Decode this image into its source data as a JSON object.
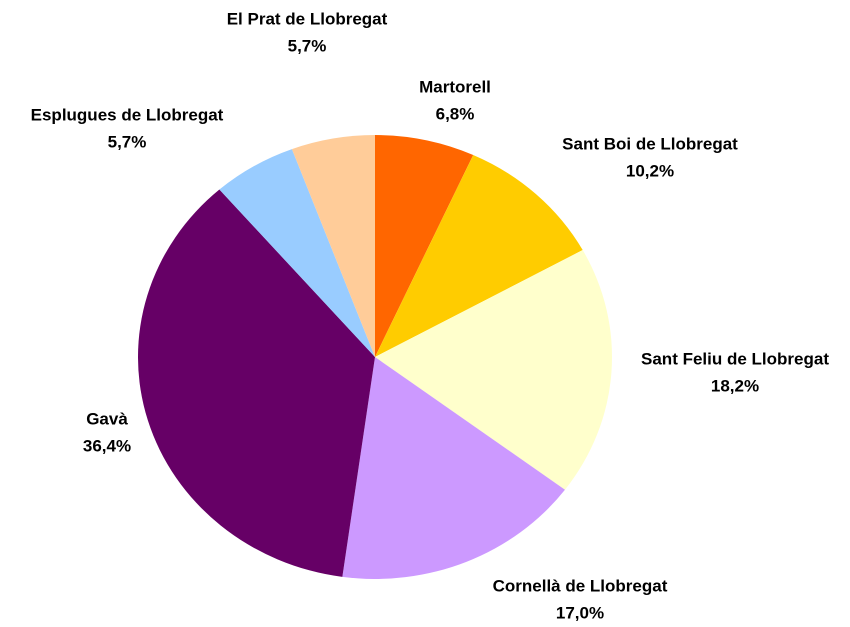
{
  "chart_data": {
    "type": "pie",
    "categories": [
      "Martorell",
      "Sant Boi de Llobregat",
      "Sant Feliu de Llobregat",
      "Cornellà de Llobregat",
      "Gavà",
      "Esplugues de Llobregat",
      "El Prat de Llobregat"
    ],
    "values": [
      6.8,
      10.2,
      18.2,
      17.0,
      36.4,
      5.7,
      5.7
    ],
    "value_labels": [
      "6,8%",
      "10,2%",
      "18,2%",
      "17,0%",
      "36,4%",
      "5,7%",
      "5,7%"
    ],
    "colors": [
      "#ff6600",
      "#ffcc00",
      "#ffffcc",
      "#cc99ff",
      "#660066",
      "#99ccff",
      "#ffcc99"
    ]
  }
}
